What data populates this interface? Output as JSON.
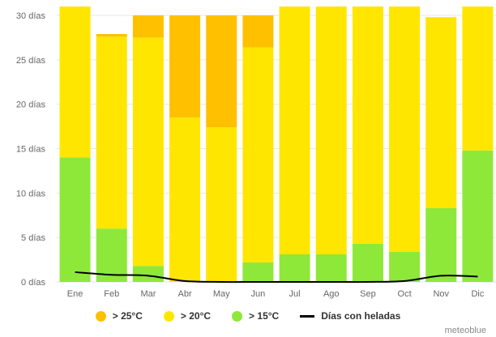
{
  "chart_data": {
    "type": "bar",
    "stacked": true,
    "categories": [
      "Ene",
      "Feb",
      "Mar",
      "Abr",
      "May",
      "Jun",
      "Jul",
      "Ago",
      "Sep",
      "Oct",
      "Nov",
      "Dic"
    ],
    "y_tick_labels": [
      "0 días",
      "5 días",
      "10 días",
      "15 días",
      "20 días",
      "25 días",
      "30 días"
    ],
    "ylim": [
      0,
      30
    ],
    "grid": true,
    "legend_position": "bottom",
    "series": [
      {
        "name": "> 15°C",
        "color": "#8ee83a",
        "values": [
          14,
          6,
          1.8,
          0,
          0,
          2.2,
          3.1,
          3.1,
          4.3,
          3.4,
          8.3,
          14.8
        ]
      },
      {
        "name": "> 20°C",
        "color": "#ffe600",
        "values": [
          17,
          21.6,
          25.7,
          18.5,
          17.4,
          24.2,
          27.9,
          27.9,
          26.7,
          27.6,
          21.5,
          16.2
        ]
      },
      {
        "name": "> 25°C",
        "color": "#ffc000",
        "values": [
          0,
          0.3,
          2.5,
          11.5,
          12.6,
          3.6,
          0,
          0,
          0,
          0,
          0,
          0
        ]
      }
    ],
    "line_series": {
      "name": "Días con heladas",
      "color": "#000000",
      "values": [
        1.1,
        0.8,
        0.7,
        0.1,
        0,
        0,
        0,
        0,
        0,
        0.1,
        0.7,
        0.6
      ]
    }
  },
  "credit": "meteoblue"
}
